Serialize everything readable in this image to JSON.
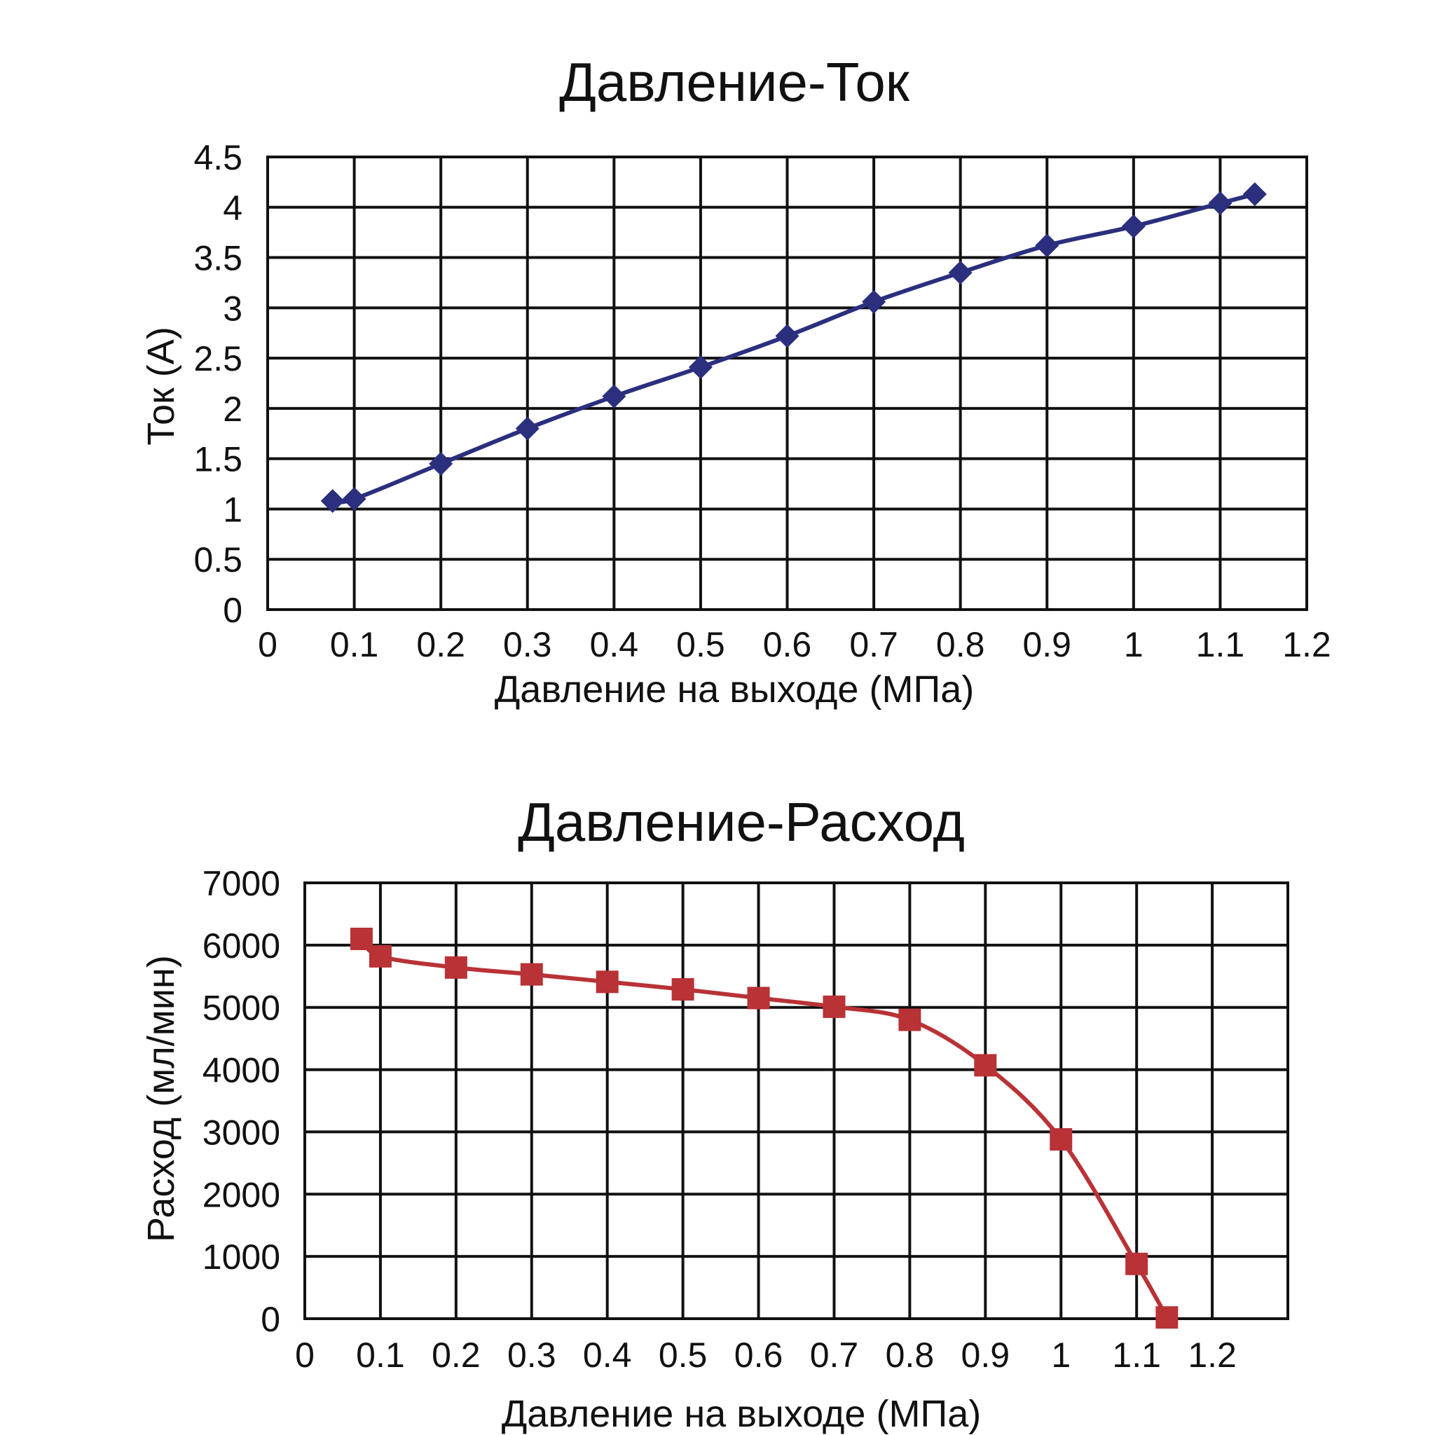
{
  "chart_data": [
    {
      "type": "line",
      "title": "Давление-Ток",
      "xlabel": "Давление на выходе (МПа)",
      "ylabel": "Ток (А)",
      "xlim": [
        0,
        1.2
      ],
      "ylim": [
        0,
        4.5
      ],
      "x_ticks": [
        "0",
        "0.1",
        "0.2",
        "0.3",
        "0.4",
        "0.5",
        "0.6",
        "0.7",
        "0.8",
        "0.9",
        "1",
        "1.1",
        "1.2"
      ],
      "y_ticks": [
        "0",
        "0.5",
        "1",
        "1.5",
        "2",
        "2.5",
        "3",
        "3.5",
        "4",
        "4.5"
      ],
      "grid": true,
      "color": "#2b2f7e",
      "marker": "diamond",
      "x": [
        0.075,
        0.1,
        0.2,
        0.3,
        0.4,
        0.5,
        0.6,
        0.7,
        0.8,
        0.9,
        1.0,
        1.1,
        1.14
      ],
      "y": [
        1.08,
        1.1,
        1.45,
        1.8,
        2.12,
        2.41,
        2.72,
        3.06,
        3.35,
        3.62,
        3.81,
        4.04,
        4.13
      ]
    },
    {
      "type": "line",
      "title": "Давление-Расход",
      "xlabel": "Давление на выходе (МПа)",
      "ylabel": "Расход (мл/мин)",
      "xlim": [
        0,
        1.3
      ],
      "ylim": [
        0,
        7000
      ],
      "x_ticks": [
        "0",
        "0.1",
        "0.2",
        "0.3",
        "0.4",
        "0.5",
        "0.6",
        "0.7",
        "0.8",
        "0.9",
        "1",
        "1.1",
        "1.2"
      ],
      "y_ticks": [
        "0",
        "1000",
        "2000",
        "3000",
        "4000",
        "5000",
        "6000",
        "7000"
      ],
      "grid": true,
      "color": "#b83236",
      "marker": "square",
      "x": [
        0.075,
        0.1,
        0.2,
        0.3,
        0.4,
        0.5,
        0.6,
        0.7,
        0.8,
        0.9,
        1.0,
        1.1,
        1.14
      ],
      "y": [
        6100,
        5820,
        5640,
        5530,
        5410,
        5290,
        5150,
        5010,
        4800,
        4070,
        2880,
        880,
        20
      ]
    }
  ]
}
